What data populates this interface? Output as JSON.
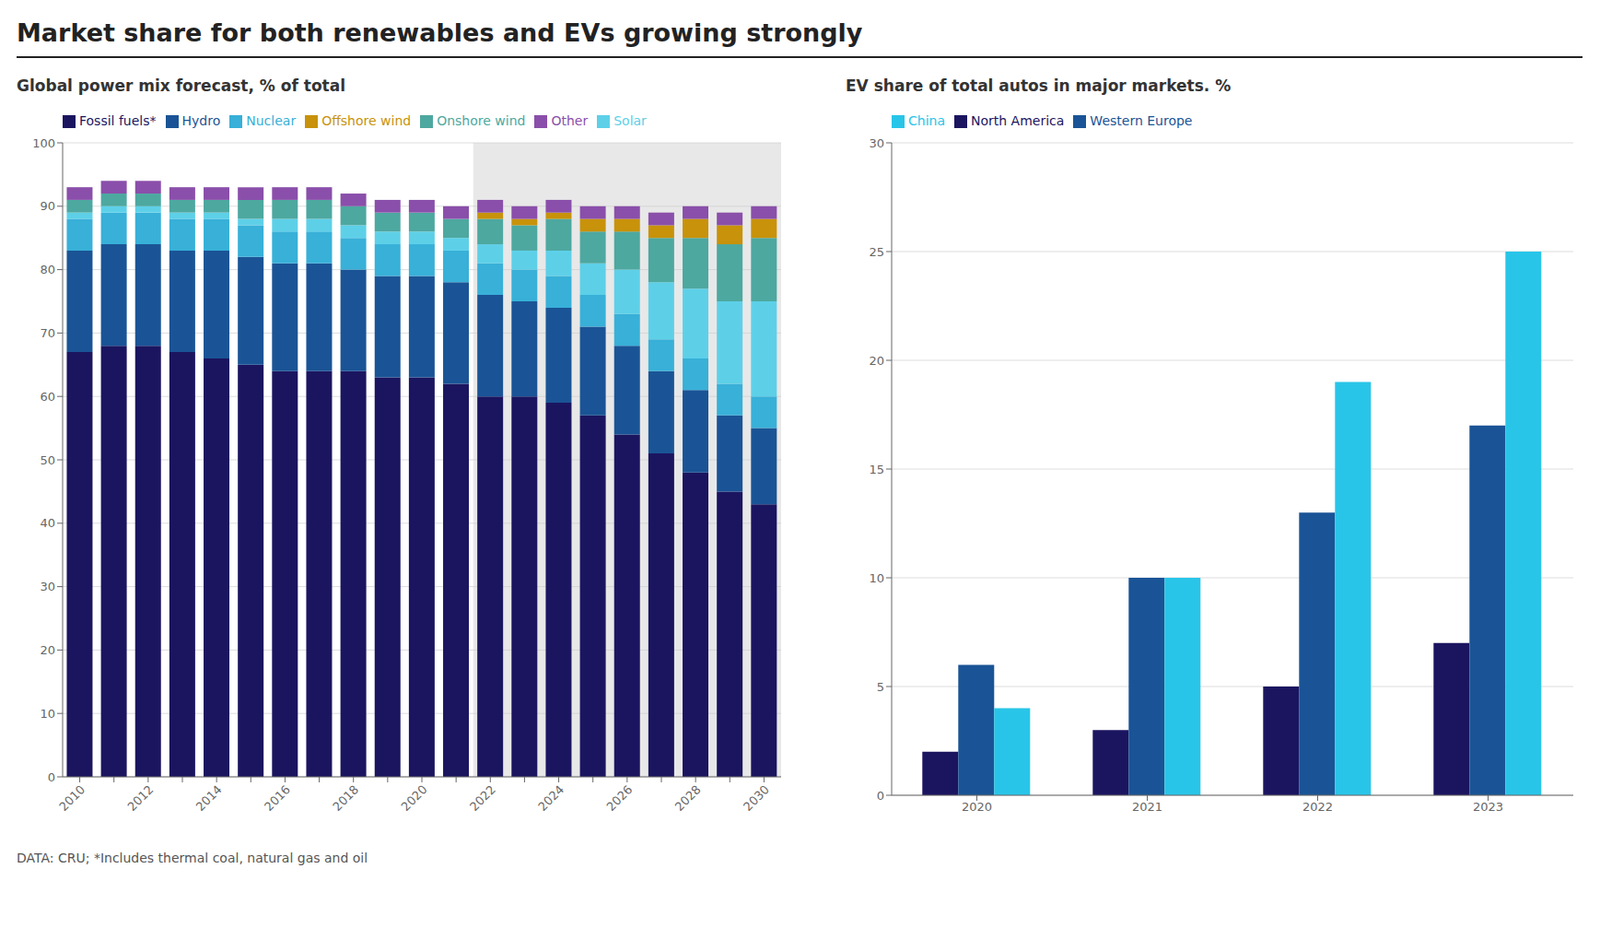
{
  "title": "Market share for both renewables and EVs growing strongly",
  "annotations": [
    "DATA: CRU; *Includes thermal coal, natural gas and oil"
  ],
  "chart_data": [
    {
      "type": "bar",
      "subtitle": "Global power mix forecast, % of total",
      "stacked": true,
      "grid": true,
      "legend": "top",
      "categories": [
        2010,
        null,
        2012,
        null,
        2014,
        null,
        2016,
        null,
        2018,
        null,
        2020,
        null,
        2022,
        null,
        2024,
        null,
        2026,
        null,
        2028,
        null,
        2030
      ],
      "forecast_from": 2022,
      "ylim": [
        0,
        100
      ],
      "yticks": [
        0,
        10,
        20,
        30,
        40,
        50,
        60,
        70,
        80,
        90,
        100
      ],
      "series": [
        {
          "name": "Fossil fuels*",
          "color": "#1b1560",
          "values": [
            67,
            68,
            68,
            67,
            66,
            65,
            64,
            64,
            64,
            63,
            63,
            62,
            60,
            60,
            59,
            57,
            54,
            51,
            48,
            45,
            43
          ]
        },
        {
          "name": "Hydro",
          "color": "#1a5496",
          "values": [
            16,
            16,
            16,
            16,
            17,
            17,
            17,
            17,
            16,
            16,
            16,
            16,
            16,
            15,
            15,
            14,
            14,
            13,
            13,
            12,
            12
          ]
        },
        {
          "name": "Nuclear",
          "color": "#38b0d8",
          "values": [
            5,
            5,
            5,
            5,
            5,
            5,
            5,
            5,
            5,
            5,
            5,
            5,
            5,
            5,
            5,
            5,
            5,
            5,
            5,
            5,
            5
          ]
        },
        {
          "name": "Solar",
          "color": "#5dd0e8",
          "values": [
            1,
            1,
            1,
            1,
            1,
            1,
            2,
            2,
            2,
            2,
            2,
            2,
            3,
            3,
            4,
            5,
            7,
            9,
            11,
            13,
            15
          ]
        },
        {
          "name": "Onshore wind",
          "color": "#4da8a0",
          "values": [
            2,
            2,
            2,
            2,
            2,
            3,
            3,
            3,
            3,
            3,
            3,
            3,
            4,
            4,
            5,
            5,
            6,
            7,
            8,
            9,
            10
          ]
        },
        {
          "name": "Offshore wind",
          "color": "#c8920a",
          "values": [
            0,
            0,
            0,
            0,
            0,
            0,
            0,
            0,
            0,
            0,
            0,
            0,
            1,
            1,
            1,
            2,
            2,
            2,
            3,
            3,
            3
          ]
        },
        {
          "name": "Other",
          "color": "#8a4faa",
          "values": [
            2,
            2,
            2,
            2,
            2,
            2,
            2,
            2,
            2,
            2,
            2,
            2,
            2,
            2,
            2,
            2,
            2,
            2,
            2,
            2,
            2
          ]
        }
      ]
    },
    {
      "type": "bar",
      "subtitle": "EV share of total autos in major markets. %",
      "stacked": false,
      "grid": true,
      "legend": "top",
      "categories": [
        2020,
        2021,
        2022,
        2023
      ],
      "ylim": [
        0,
        30
      ],
      "yticks": [
        0,
        5,
        10,
        15,
        20,
        25,
        30
      ],
      "series": [
        {
          "name": "North America",
          "color": "#1b1560",
          "values": [
            2,
            3,
            5,
            7
          ]
        },
        {
          "name": "Western Europe",
          "color": "#1a5496",
          "values": [
            6,
            10,
            13,
            17
          ]
        },
        {
          "name": "China",
          "color": "#29c5e8",
          "values": [
            4,
            10,
            19,
            25
          ]
        }
      ]
    }
  ]
}
